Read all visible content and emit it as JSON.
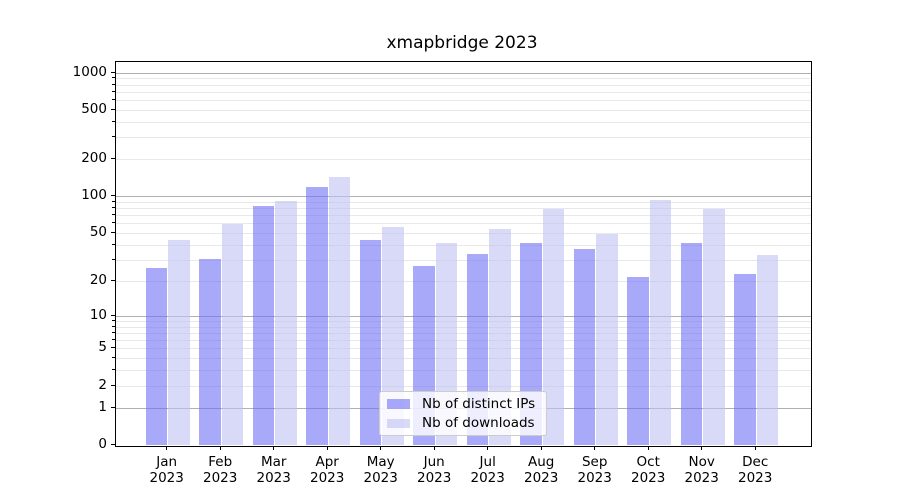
{
  "chart_data": {
    "type": "bar",
    "title": "xmapbridge 2023",
    "categories": [
      "Jan",
      "Feb",
      "Mar",
      "Apr",
      "May",
      "Jun",
      "Jul",
      "Aug",
      "Sep",
      "Oct",
      "Nov",
      "Dec"
    ],
    "year": "2023",
    "series": [
      {
        "name": "Nb of distinct IPs",
        "color": "#7070f7",
        "values": [
          26,
          31,
          84,
          120,
          44,
          27,
          34,
          42,
          37,
          22,
          42,
          23
        ]
      },
      {
        "name": "Nb of downloads",
        "color": "#c0c0f3",
        "values": [
          44,
          60,
          93,
          145,
          57,
          42,
          55,
          80,
          50,
          94,
          80,
          33
        ]
      }
    ],
    "bar_alpha": 0.6,
    "yscale": "log1p",
    "ylim": [
      0,
      1260
    ],
    "y_ticks": [
      1000,
      500,
      200,
      100,
      50,
      20,
      10,
      5,
      2,
      1,
      0
    ],
    "y_major_gridlines": [
      1,
      10,
      100,
      1000
    ],
    "y_minor_gridlines": [
      2,
      3,
      4,
      5,
      6,
      7,
      8,
      9,
      20,
      30,
      40,
      50,
      60,
      70,
      80,
      90,
      200,
      300,
      400,
      500,
      600,
      700,
      800,
      900
    ],
    "grid": true,
    "legend_position": "lower center"
  }
}
